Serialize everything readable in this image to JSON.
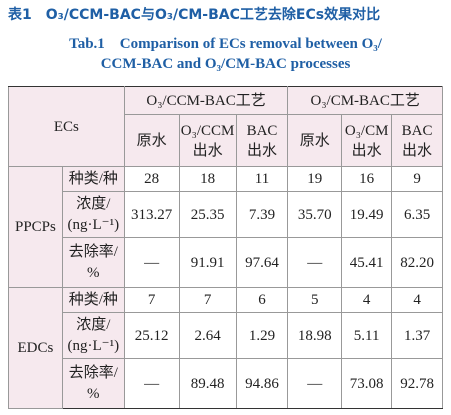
{
  "caption": {
    "cn": "表1　O₃/CCM-BAC与O₃/CM-BAC工艺去除ECs效果对比",
    "en": [
      "Tab.1　Comparison of ECs removal between O₃/",
      "CCM-BAC and O₃/CM-BAC processes"
    ]
  },
  "table": {
    "corner": "ECs",
    "groups": [
      "O₃/CCM-BAC工艺",
      "O₃/CM-BAC工艺"
    ],
    "columns": [
      "原水",
      "O₃/CCM\n出水",
      "BAC\n出水",
      "原水",
      "O₃/CM\n出水",
      "BAC\n出水"
    ],
    "sections": [
      {
        "name": "PPCPs",
        "rows": [
          {
            "label": "种类/种",
            "values": [
              "28",
              "18",
              "11",
              "19",
              "16",
              "9"
            ]
          },
          {
            "label": "浓度/\n(ng·L⁻¹)",
            "values": [
              "313.27",
              "25.35",
              "7.39",
              "35.70",
              "19.49",
              "6.35"
            ]
          },
          {
            "label": "去除率/\n%",
            "values": [
              "—",
              "91.91",
              "97.64",
              "—",
              "45.41",
              "82.20"
            ]
          }
        ]
      },
      {
        "name": "EDCs",
        "rows": [
          {
            "label": "种类/种",
            "values": [
              "7",
              "7",
              "6",
              "5",
              "4",
              "4"
            ]
          },
          {
            "label": "浓度/\n(ng·L⁻¹)",
            "values": [
              "25.12",
              "2.64",
              "1.29",
              "18.98",
              "5.11",
              "1.37"
            ]
          },
          {
            "label": "去除率/\n%",
            "values": [
              "—",
              "89.48",
              "94.86",
              "—",
              "73.08",
              "92.78"
            ]
          }
        ]
      }
    ]
  }
}
